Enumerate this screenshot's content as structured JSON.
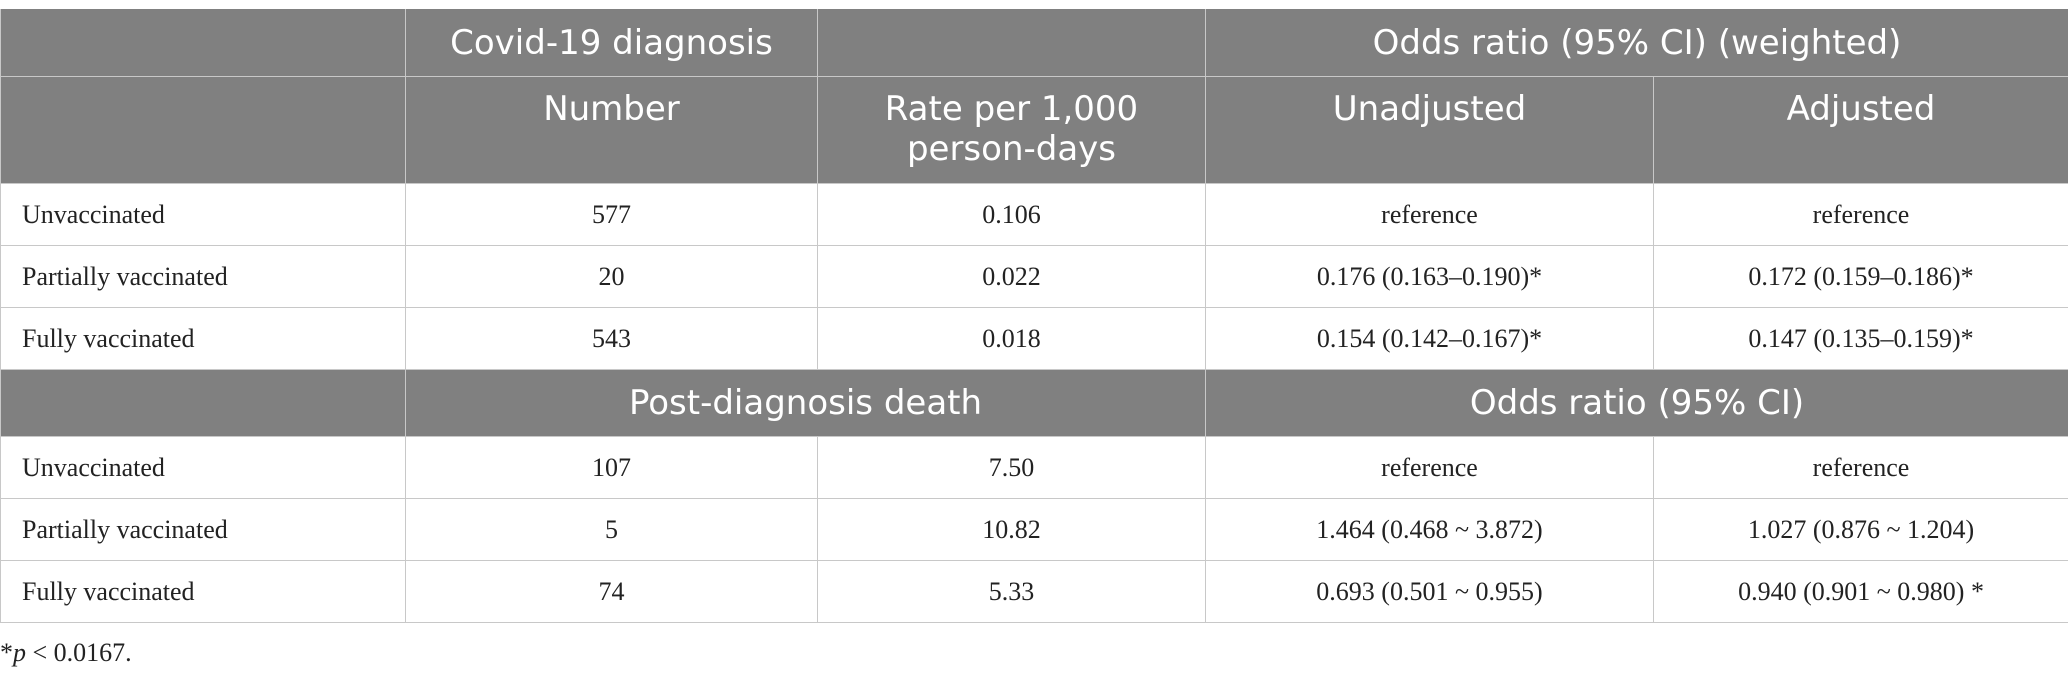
{
  "header": {
    "row1": {
      "covid_diagnosis": "Covid-19 diagnosis",
      "odds_ratio_weighted": "Odds ratio (95% CI) (weighted)"
    },
    "row2": {
      "number": "Number",
      "rate": "Rate per 1,000 person-days",
      "unadjusted": "Unadjusted",
      "adjusted": "Adjusted"
    }
  },
  "section1": {
    "rows": [
      {
        "label": "Unvaccinated",
        "number": "577",
        "rate": "0.106",
        "unadjusted": "reference",
        "adjusted": "reference"
      },
      {
        "label": "Partially vaccinated",
        "number": "20",
        "rate": "0.022",
        "unadjusted": "0.176 (0.163–0.190)*",
        "adjusted": "0.172 (0.159–0.186)*"
      },
      {
        "label": "Fully vaccinated",
        "number": "543",
        "rate": "0.018",
        "unadjusted": "0.154 (0.142–0.167)*",
        "adjusted": "0.147 (0.135–0.159)*"
      }
    ]
  },
  "section2": {
    "header": {
      "post_diagnosis_death": "Post-diagnosis death",
      "odds_ratio": "Odds ratio (95% CI)"
    },
    "rows": [
      {
        "label": "Unvaccinated",
        "number": "107",
        "rate": "7.50",
        "unadjusted": "reference",
        "adjusted": "reference"
      },
      {
        "label": "Partially vaccinated",
        "number": "5",
        "rate": "10.82",
        "unadjusted": "1.464 (0.468 ~ 3.872)",
        "adjusted": "1.027 (0.876 ~ 1.204)"
      },
      {
        "label": "Fully vaccinated",
        "number": "74",
        "rate": "5.33",
        "unadjusted": "0.693 (0.501 ~ 0.955)",
        "adjusted": "0.940 (0.901 ~ 0.980) *"
      }
    ]
  },
  "footnote": {
    "star": "*",
    "p": "p",
    "text": " < 0.0167."
  }
}
